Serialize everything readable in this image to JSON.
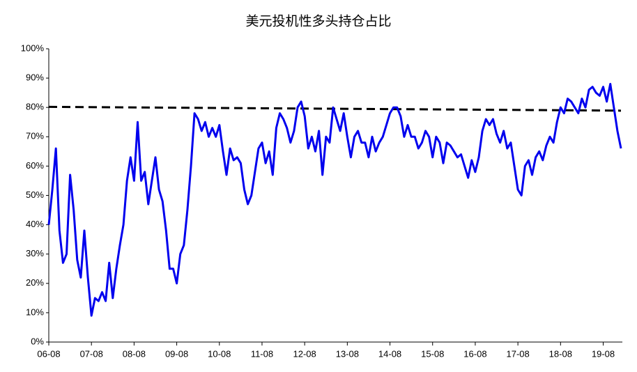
{
  "chart_data": {
    "type": "line",
    "title": "美元投机性多头持仓占比",
    "categories": [
      "06-08",
      null,
      null,
      null,
      null,
      null,
      null,
      null,
      null,
      null,
      null,
      null,
      "07-08",
      null,
      null,
      null,
      null,
      null,
      null,
      null,
      null,
      null,
      null,
      null,
      "08-08",
      null,
      null,
      null,
      null,
      null,
      null,
      null,
      null,
      null,
      null,
      null,
      "09-08",
      null,
      null,
      null,
      null,
      null,
      null,
      null,
      null,
      null,
      null,
      null,
      "10-08",
      null,
      null,
      null,
      null,
      null,
      null,
      null,
      null,
      null,
      null,
      null,
      "11-08",
      null,
      null,
      null,
      null,
      null,
      null,
      null,
      null,
      null,
      null,
      null,
      "12-08",
      null,
      null,
      null,
      null,
      null,
      null,
      null,
      null,
      null,
      null,
      null,
      "13-08",
      null,
      null,
      null,
      null,
      null,
      null,
      null,
      null,
      null,
      null,
      null,
      "14-08",
      null,
      null,
      null,
      null,
      null,
      null,
      null,
      null,
      null,
      null,
      null,
      "15-08",
      null,
      null,
      null,
      null,
      null,
      null,
      null,
      null,
      null,
      null,
      null,
      "16-08",
      null,
      null,
      null,
      null,
      null,
      null,
      null,
      null,
      null,
      null,
      null,
      "17-08",
      null,
      null,
      null,
      null,
      null,
      null,
      null,
      null,
      null,
      null,
      null,
      "18-08",
      null,
      null,
      null,
      null,
      null,
      null,
      null,
      null,
      null,
      null,
      null,
      "19-08",
      null,
      null,
      null,
      null,
      null
    ],
    "series": [
      {
        "color": "#0000ee",
        "values": [
          40,
          52,
          66,
          38,
          27,
          30,
          57,
          45,
          28,
          22,
          38,
          22,
          9,
          15,
          14,
          17,
          14,
          27,
          15,
          25,
          33,
          40,
          55,
          63,
          55,
          75,
          55,
          58,
          47,
          55,
          63,
          52,
          48,
          38,
          25,
          25,
          20,
          30,
          33,
          45,
          60,
          78,
          76,
          72,
          75,
          70,
          73,
          70,
          74,
          65,
          57,
          66,
          62,
          63,
          61,
          52,
          47,
          50,
          58,
          66,
          68,
          61,
          65,
          57,
          73,
          78,
          76,
          73,
          68,
          72,
          80,
          82,
          77,
          66,
          70,
          65,
          72,
          57,
          70,
          68,
          80,
          76,
          72,
          78,
          70,
          63,
          70,
          72,
          68,
          68,
          63,
          70,
          65,
          68,
          70,
          74,
          78,
          80,
          80,
          77,
          70,
          74,
          70,
          70,
          66,
          68,
          72,
          70,
          63,
          70,
          68,
          61,
          68,
          67,
          65,
          63,
          64,
          60,
          56,
          62,
          58,
          63,
          72,
          76,
          74,
          76,
          71,
          68,
          72,
          66,
          68,
          60,
          52,
          50,
          60,
          62,
          57,
          63,
          65,
          62,
          67,
          70,
          68,
          75,
          80,
          78,
          83,
          82,
          80,
          78,
          83,
          80,
          86,
          87,
          85,
          84,
          87,
          82,
          88,
          80,
          72,
          66
        ]
      }
    ],
    "trend_line": {
      "color": "#000000",
      "start": 80.2,
      "end": 78.9
    },
    "ylim": [
      0,
      100
    ],
    "yticks": [
      {
        "value": 0,
        "label": "0%"
      },
      {
        "value": 10,
        "label": "10%"
      },
      {
        "value": 20,
        "label": "20%"
      },
      {
        "value": 30,
        "label": "30%"
      },
      {
        "value": 40,
        "label": "40%"
      },
      {
        "value": 50,
        "label": "50%"
      },
      {
        "value": 60,
        "label": "60%"
      },
      {
        "value": 70,
        "label": "70%"
      },
      {
        "value": 80,
        "label": "80%"
      },
      {
        "value": 90,
        "label": "90%"
      },
      {
        "value": 100,
        "label": "100%"
      }
    ],
    "grid": false
  }
}
